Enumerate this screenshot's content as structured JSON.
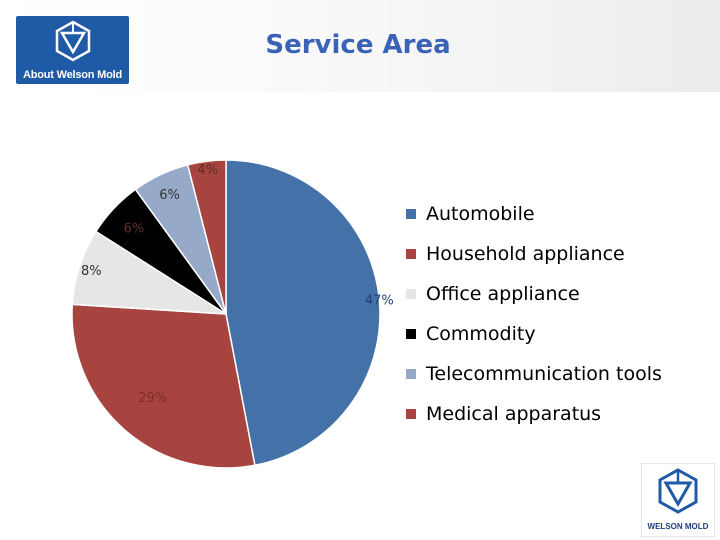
{
  "header": {
    "logo_text": "About Welson Mold",
    "title": "Service Area"
  },
  "footer_logo": {
    "text": "WELSON MOLD"
  },
  "icons": {
    "header_logo": "cube-logo-icon",
    "footer_logo": "cube-logo-icon"
  },
  "chart_data": {
    "type": "pie",
    "title": "Service Area",
    "start_angle_deg": 0,
    "direction": "clockwise",
    "legend_position": "right",
    "slices": [
      {
        "label": "Automobile",
        "value": 47,
        "display": "47%",
        "color": "#4472a8"
      },
      {
        "label": "Household appliance",
        "value": 29,
        "display": "29%",
        "color": "#a8443f"
      },
      {
        "label": "Office appliance",
        "value": 8,
        "display": "8%",
        "color": "#e6e6e6"
      },
      {
        "label": "Commodity",
        "value": 6,
        "display": "6%",
        "color": "#000000"
      },
      {
        "label": "Telecommunication tools",
        "value": 6,
        "display": "6%",
        "color": "#97a9c8"
      },
      {
        "label": "Medical apparatus",
        "value": 4,
        "display": "4%",
        "color": "#a8443f"
      }
    ]
  }
}
